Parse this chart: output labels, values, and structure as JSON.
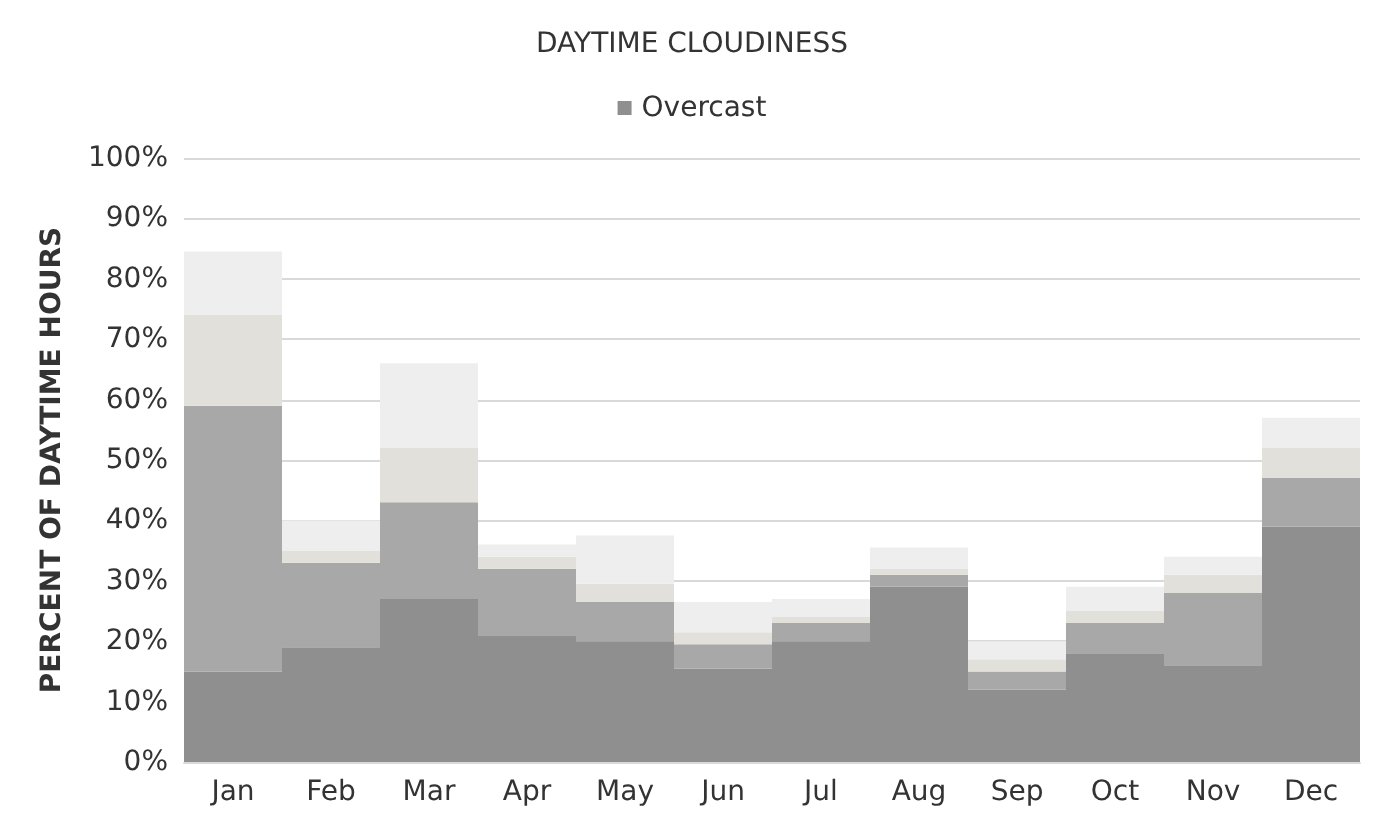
{
  "chart_data": {
    "type": "bar",
    "title": "DAYTIME CLOUDINESS",
    "ylabel": "PERCENT OF DAYTIME HOURS",
    "categories": [
      "Jan",
      "Feb",
      "Mar",
      "Apr",
      "May",
      "Jun",
      "Jul",
      "Aug",
      "Sep",
      "Oct",
      "Nov",
      "Dec"
    ],
    "stacked": true,
    "series": [
      {
        "name": "Overcast",
        "color": "#8f8f8f",
        "values": [
          15,
          19,
          27,
          21,
          20,
          15.5,
          20,
          29,
          12,
          18,
          16,
          39
        ]
      },
      {
        "color": "#a8a8a8",
        "values": [
          44,
          14,
          16,
          11,
          6.5,
          4,
          3,
          2,
          3,
          5,
          12,
          8
        ]
      },
      {
        "color": "#e2e0da",
        "values": [
          15,
          2,
          9,
          2,
          3,
          2,
          1,
          1,
          2,
          2,
          3,
          5
        ]
      },
      {
        "color": "#eeeeee",
        "values": [
          10.5,
          5,
          14,
          2,
          8,
          5,
          3,
          3.5,
          3,
          4,
          3,
          5
        ]
      }
    ],
    "ylim": [
      0,
      100
    ],
    "yticks": [
      {
        "value": 0,
        "label": "0%"
      },
      {
        "value": 10,
        "label": "10%"
      },
      {
        "value": 20,
        "label": "20%"
      },
      {
        "value": 30,
        "label": "30%"
      },
      {
        "value": 40,
        "label": "40%"
      },
      {
        "value": 50,
        "label": "50%"
      },
      {
        "value": 60,
        "label": "60%"
      },
      {
        "value": 70,
        "label": "70%"
      },
      {
        "value": 80,
        "label": "80%"
      },
      {
        "value": 90,
        "label": "90%"
      },
      {
        "value": 100,
        "label": "100%"
      }
    ],
    "grid": "y",
    "legend": "top"
  }
}
